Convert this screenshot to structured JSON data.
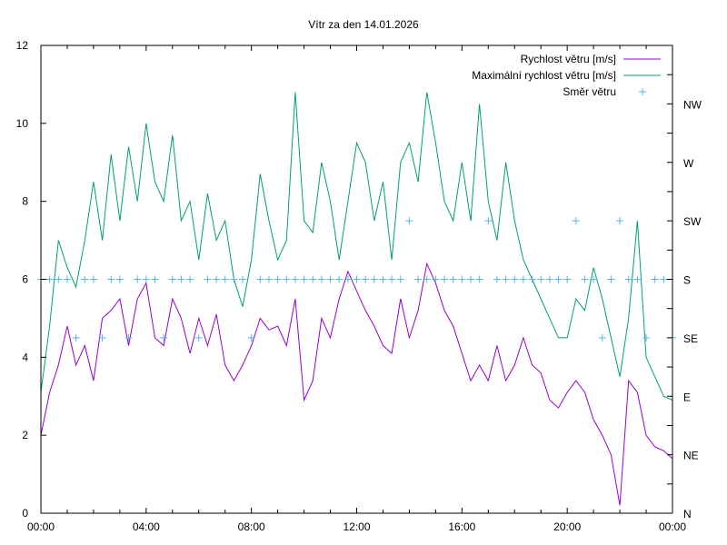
{
  "chart_data": {
    "type": "line",
    "title": "Vítr za den 14.01.2026",
    "xlabel": "",
    "ylabel": "",
    "x_ticks": [
      "00:00",
      "04:00",
      "08:00",
      "12:00",
      "16:00",
      "20:00",
      "00:00"
    ],
    "x_range_hours": [
      0,
      24
    ],
    "ylim": [
      0,
      12
    ],
    "y_ticks": [
      "0",
      "2",
      "4",
      "6",
      "8",
      "10",
      "12"
    ],
    "y2_ticks": [
      "N",
      "NE",
      "E",
      "SE",
      "S",
      "SW",
      "W",
      "NW"
    ],
    "y2_tick_values": [
      0,
      45,
      90,
      135,
      180,
      225,
      270,
      315
    ],
    "y2lim": [
      0,
      360
    ],
    "legend_position": "top-right",
    "x_hours": [
      0,
      0.333,
      0.667,
      1,
      1.333,
      1.667,
      2,
      2.333,
      2.667,
      3,
      3.333,
      3.667,
      4,
      4.333,
      4.667,
      5,
      5.333,
      5.667,
      6,
      6.333,
      6.667,
      7,
      7.333,
      7.667,
      8,
      8.333,
      8.667,
      9,
      9.333,
      9.667,
      10,
      10.333,
      10.667,
      11,
      11.333,
      11.667,
      12,
      12.333,
      12.667,
      13,
      13.333,
      13.667,
      14,
      14.333,
      14.667,
      15,
      15.333,
      15.667,
      16,
      16.333,
      16.667,
      17,
      17.333,
      17.667,
      18,
      18.333,
      18.667,
      19,
      19.333,
      19.667,
      20,
      20.333,
      20.667,
      21,
      21.333,
      21.667,
      22,
      22.333,
      22.667,
      23,
      23.333,
      23.667,
      24
    ],
    "series": [
      {
        "name": "Rychlost větru [m/s]",
        "color": "#9400d3",
        "style": "line",
        "values": [
          2.0,
          3.1,
          3.8,
          4.8,
          3.8,
          4.3,
          3.4,
          5.0,
          5.2,
          5.5,
          4.3,
          5.5,
          5.9,
          4.5,
          4.3,
          5.5,
          5.0,
          4.1,
          5.0,
          4.3,
          5.1,
          3.8,
          3.4,
          3.8,
          4.3,
          5.0,
          4.7,
          4.8,
          4.3,
          5.5,
          2.9,
          3.4,
          5.0,
          4.5,
          5.5,
          6.2,
          5.7,
          5.2,
          4.8,
          4.3,
          4.1,
          5.5,
          4.5,
          5.2,
          6.4,
          5.9,
          5.2,
          4.8,
          4.1,
          3.4,
          3.8,
          3.4,
          4.3,
          3.4,
          3.8,
          4.5,
          3.8,
          3.6,
          2.9,
          2.7,
          3.1,
          3.4,
          3.1,
          2.4,
          2.0,
          1.5,
          0.2,
          3.4,
          3.1,
          2.0,
          1.7,
          1.6,
          1.4
        ]
      },
      {
        "name": "Maximální rychlost větru [m/s]",
        "color": "#009e73",
        "style": "line",
        "values": [
          3.1,
          4.8,
          7.0,
          6.3,
          5.8,
          7.0,
          8.5,
          7.0,
          9.2,
          7.5,
          9.4,
          8.0,
          10.0,
          8.5,
          8.0,
          9.7,
          7.5,
          8.0,
          6.5,
          8.2,
          7.0,
          7.5,
          6.0,
          5.3,
          6.5,
          8.7,
          7.5,
          6.5,
          7.0,
          10.8,
          7.5,
          7.2,
          9.0,
          8.0,
          6.5,
          8.0,
          9.5,
          9.0,
          7.5,
          8.5,
          6.5,
          9.0,
          9.5,
          8.5,
          10.8,
          9.5,
          8.0,
          7.5,
          9.0,
          7.5,
          10.5,
          8.0,
          7.0,
          9.0,
          7.5,
          6.5,
          6.0,
          5.5,
          5.0,
          4.5,
          4.5,
          5.5,
          5.2,
          6.3,
          5.5,
          4.5,
          3.5,
          5.0,
          7.5,
          4.0,
          3.5,
          3.0,
          2.9
        ]
      },
      {
        "name": "Směr větru",
        "color": "#56b4e9",
        "style": "points",
        "axis": "y2",
        "values": [
          180,
          180,
          180,
          180,
          135,
          180,
          180,
          135,
          180,
          180,
          135,
          180,
          180,
          180,
          135,
          180,
          180,
          180,
          135,
          180,
          180,
          180,
          180,
          180,
          135,
          180,
          180,
          180,
          180,
          180,
          180,
          180,
          180,
          180,
          180,
          180,
          180,
          180,
          180,
          180,
          180,
          180,
          225,
          180,
          180,
          180,
          180,
          180,
          180,
          180,
          180,
          225,
          180,
          180,
          180,
          180,
          180,
          180,
          180,
          180,
          180,
          225,
          180,
          180,
          135,
          180,
          225,
          180,
          180,
          135,
          180,
          180,
          135
        ]
      }
    ]
  }
}
